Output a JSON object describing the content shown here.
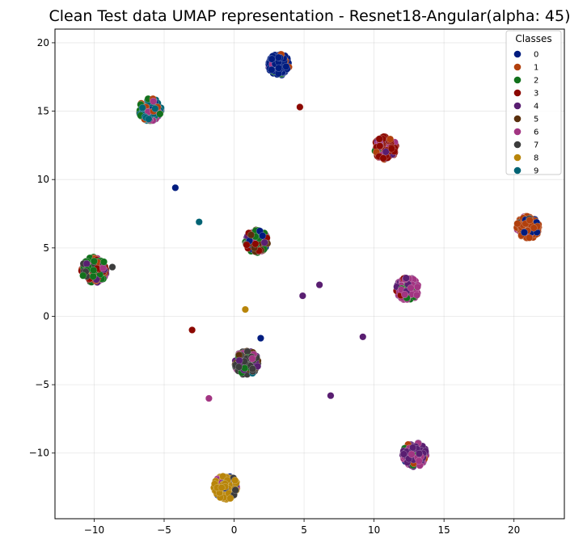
{
  "chart_data": {
    "type": "scatter",
    "title": "Clean Test data UMAP representation - Resnet18-Angular(alpha: 45)",
    "xlabel": "",
    "ylabel": "",
    "xlim": [
      -12.8,
      23.6
    ],
    "ylim": [
      -14.8,
      21.0
    ],
    "xticks": [
      -10,
      -5,
      0,
      5,
      10,
      15,
      20
    ],
    "yticks": [
      -10,
      -5,
      0,
      5,
      10,
      15,
      20
    ],
    "x_tick_labels": [
      "−10",
      "−5",
      "0",
      "5",
      "10",
      "15",
      "20"
    ],
    "y_tick_labels": [
      "−10",
      "−5",
      "0",
      "5",
      "10",
      "15",
      "20"
    ],
    "grid": true,
    "legend": {
      "title": "Classes",
      "position": "top-right",
      "entries": [
        "0",
        "1",
        "2",
        "3",
        "4",
        "5",
        "6",
        "7",
        "8",
        "9"
      ]
    },
    "colors": [
      "#001c7f",
      "#b1400d",
      "#12711c",
      "#8c0800",
      "#591e71",
      "#592f0d",
      "#a23582",
      "#3c3c3c",
      "#b8850a",
      "#006374"
    ],
    "clusters": [
      {
        "class": "0",
        "x": 3.2,
        "y": 18.4,
        "spread": 0.75,
        "mix": [
          {
            "class": "0",
            "w": 0.85
          },
          {
            "class": "1",
            "w": 0.08
          },
          {
            "class": "6",
            "w": 0.04
          },
          {
            "class": "2",
            "w": 0.03
          }
        ]
      },
      {
        "class": "9",
        "x": -6.0,
        "y": 15.1,
        "spread": 0.8,
        "mix": [
          {
            "class": "9",
            "w": 0.55
          },
          {
            "class": "2",
            "w": 0.2
          },
          {
            "class": "1",
            "w": 0.1
          },
          {
            "class": "0",
            "w": 0.05
          },
          {
            "class": "6",
            "w": 0.1
          }
        ]
      },
      {
        "class": "3",
        "x": 10.8,
        "y": 12.3,
        "spread": 0.8,
        "mix": [
          {
            "class": "3",
            "w": 0.6
          },
          {
            "class": "6",
            "w": 0.15
          },
          {
            "class": "4",
            "w": 0.1
          },
          {
            "class": "2",
            "w": 0.1
          },
          {
            "class": "1",
            "w": 0.05
          }
        ]
      },
      {
        "class": "1",
        "x": 21.0,
        "y": 6.5,
        "spread": 0.8,
        "mix": [
          {
            "class": "1",
            "w": 0.85
          },
          {
            "class": "0",
            "w": 0.05
          },
          {
            "class": "6",
            "w": 0.05
          },
          {
            "class": "7",
            "w": 0.05
          }
        ]
      },
      {
        "class": "5",
        "x": 1.6,
        "y": 5.5,
        "spread": 0.8,
        "mix": [
          {
            "class": "5",
            "w": 0.3
          },
          {
            "class": "2",
            "w": 0.25
          },
          {
            "class": "3",
            "w": 0.2
          },
          {
            "class": "6",
            "w": 0.1
          },
          {
            "class": "4",
            "w": 0.1
          },
          {
            "class": "0",
            "w": 0.05
          }
        ]
      },
      {
        "class": "2",
        "x": -10.0,
        "y": 3.4,
        "spread": 0.9,
        "mix": [
          {
            "class": "2",
            "w": 0.45
          },
          {
            "class": "7",
            "w": 0.15
          },
          {
            "class": "3",
            "w": 0.1
          },
          {
            "class": "4",
            "w": 0.1
          },
          {
            "class": "6",
            "w": 0.1
          },
          {
            "class": "8",
            "w": 0.05
          },
          {
            "class": "1",
            "w": 0.05
          }
        ]
      },
      {
        "class": "6",
        "x": 12.4,
        "y": 2.0,
        "spread": 0.8,
        "mix": [
          {
            "class": "6",
            "w": 0.6
          },
          {
            "class": "4",
            "w": 0.2
          },
          {
            "class": "2",
            "w": 0.1
          },
          {
            "class": "3",
            "w": 0.1
          }
        ]
      },
      {
        "class": "7",
        "x": 0.9,
        "y": -3.4,
        "spread": 0.85,
        "mix": [
          {
            "class": "7",
            "w": 0.45
          },
          {
            "class": "5",
            "w": 0.2
          },
          {
            "class": "2",
            "w": 0.1
          },
          {
            "class": "4",
            "w": 0.1
          },
          {
            "class": "6",
            "w": 0.1
          },
          {
            "class": "9",
            "w": 0.05
          }
        ]
      },
      {
        "class": "4",
        "x": 12.9,
        "y": -10.1,
        "spread": 0.85,
        "mix": [
          {
            "class": "4",
            "w": 0.6
          },
          {
            "class": "6",
            "w": 0.2
          },
          {
            "class": "2",
            "w": 0.1
          },
          {
            "class": "0",
            "w": 0.05
          },
          {
            "class": "1",
            "w": 0.05
          }
        ]
      },
      {
        "class": "8",
        "x": -0.6,
        "y": -12.5,
        "spread": 0.85,
        "mix": [
          {
            "class": "8",
            "w": 0.85
          },
          {
            "class": "0",
            "w": 0.08
          },
          {
            "class": "6",
            "w": 0.04
          },
          {
            "class": "7",
            "w": 0.03
          }
        ]
      }
    ],
    "outliers": [
      {
        "class": "3",
        "x": 4.7,
        "y": 15.3
      },
      {
        "class": "0",
        "x": -4.2,
        "y": 9.4
      },
      {
        "class": "9",
        "x": -2.5,
        "y": 6.9
      },
      {
        "class": "7",
        "x": -8.7,
        "y": 3.6
      },
      {
        "class": "4",
        "x": 6.1,
        "y": 2.3
      },
      {
        "class": "4",
        "x": 4.9,
        "y": 1.5
      },
      {
        "class": "8",
        "x": 0.8,
        "y": 0.5
      },
      {
        "class": "3",
        "x": -3.0,
        "y": -1.0
      },
      {
        "class": "0",
        "x": 1.9,
        "y": -1.6
      },
      {
        "class": "4",
        "x": 9.2,
        "y": -1.5
      },
      {
        "class": "4",
        "x": 6.9,
        "y": -5.8
      },
      {
        "class": "6",
        "x": -1.8,
        "y": -6.0
      }
    ]
  }
}
